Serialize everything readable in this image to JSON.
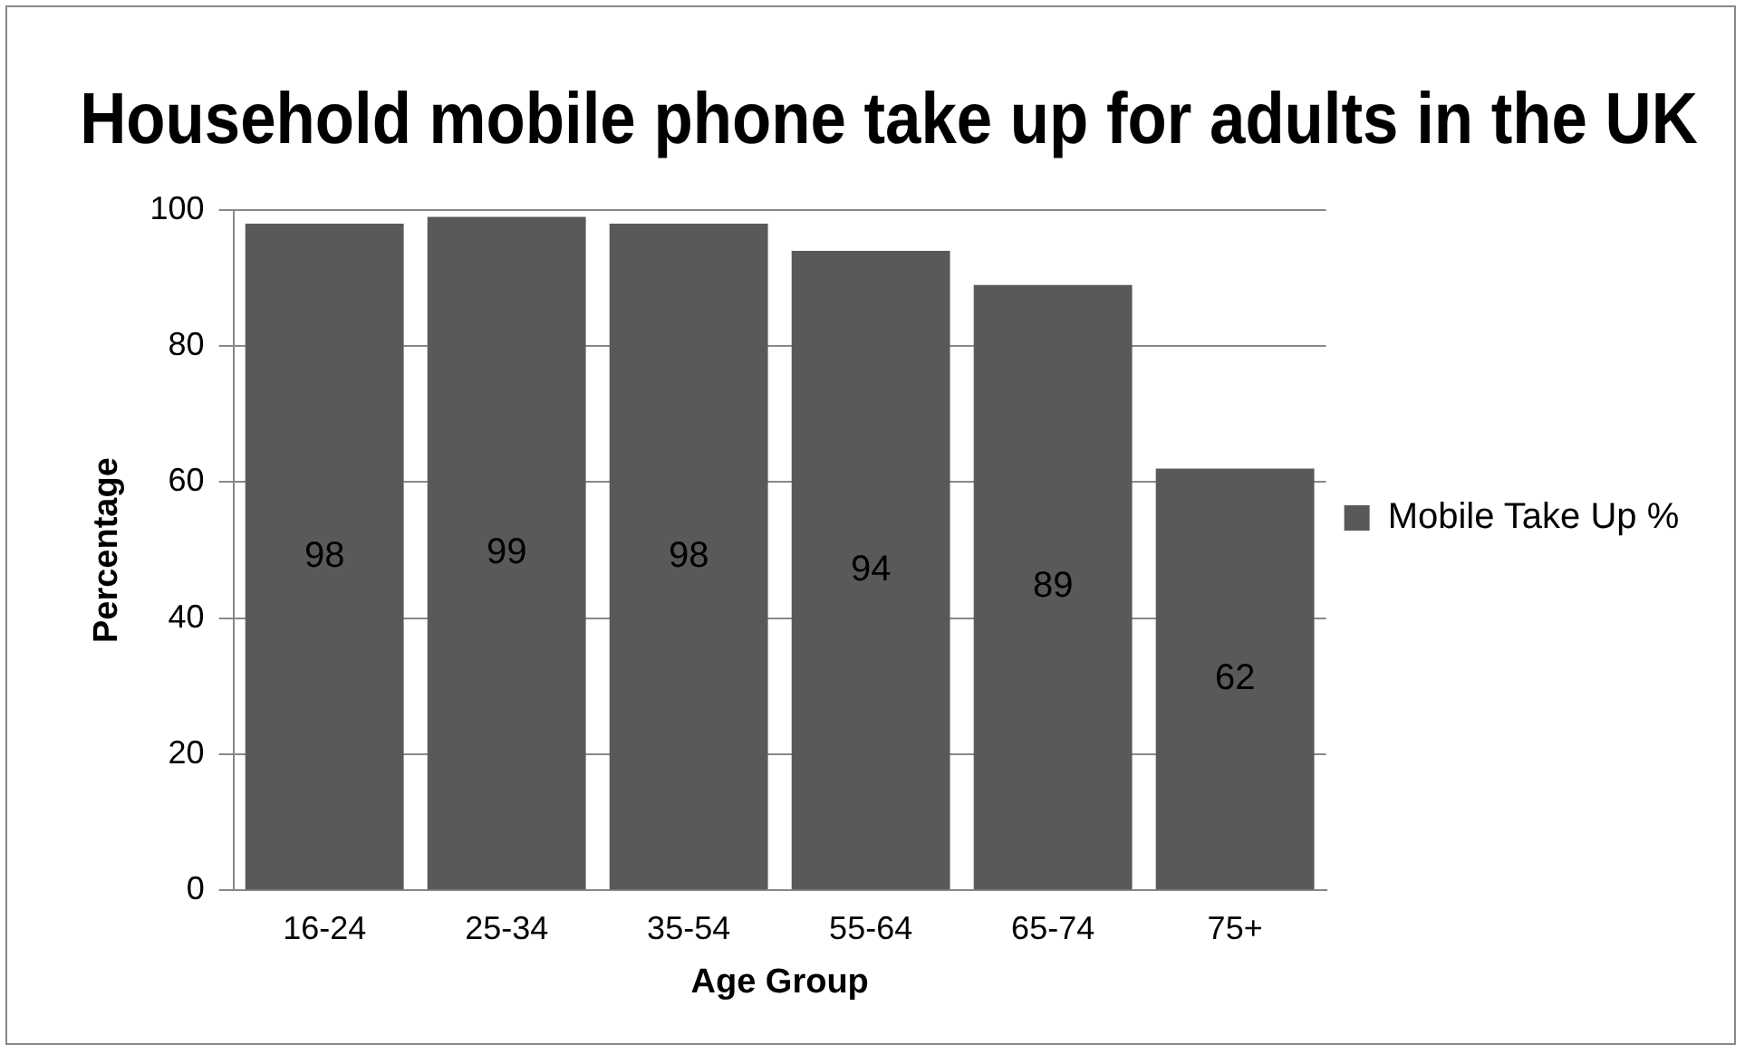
{
  "chart_data": {
    "type": "bar",
    "title": "Household mobile phone take up for adults in the UK",
    "xlabel": "Age Group",
    "ylabel": "Percentage",
    "categories": [
      "16-24",
      "25-34",
      "35-54",
      "55-64",
      "65-74",
      "75+"
    ],
    "series": [
      {
        "name": "Mobile Take Up %",
        "color": "#595959",
        "values": [
          98,
          99,
          98,
          94,
          89,
          62
        ]
      }
    ],
    "ylim": [
      0,
      100
    ],
    "yticks": [
      0,
      20,
      40,
      60,
      80,
      100
    ],
    "grid": "y",
    "legend": "right",
    "data_labels": true
  }
}
